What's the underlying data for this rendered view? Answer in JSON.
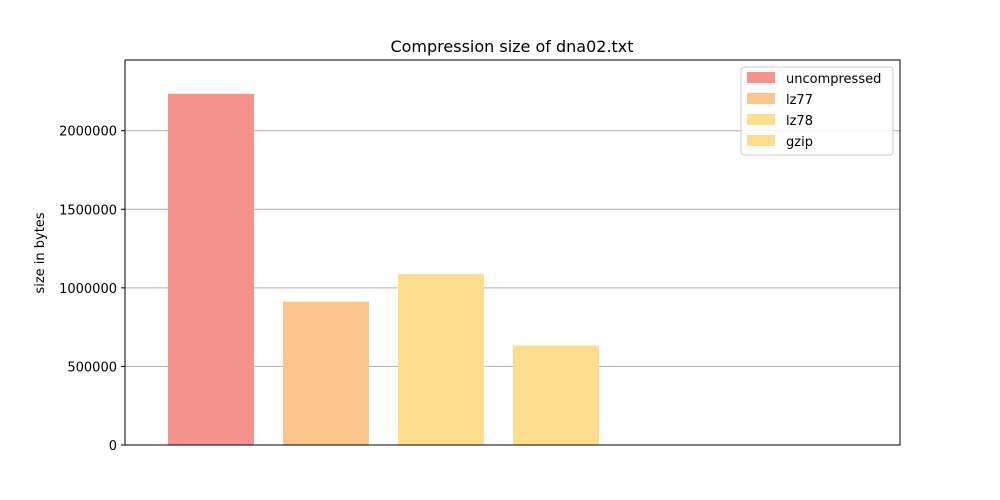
{
  "chart_data": {
    "type": "bar",
    "title": "Compression size of dna02.txt",
    "xlabel": "",
    "ylabel": "size in bytes",
    "ylim": [
      0,
      2450000
    ],
    "yticks": [
      0,
      500000,
      1000000,
      1500000,
      2000000
    ],
    "ytick_labels": [
      "0",
      "500000",
      "1000000",
      "1500000",
      "2000000"
    ],
    "grid": "y",
    "legend_position": "top-right",
    "series": [
      {
        "name": "uncompressed",
        "value": 2235000,
        "color": "#f4938e"
      },
      {
        "name": "lz77",
        "value": 912000,
        "color": "#fbc58d"
      },
      {
        "name": "lz78",
        "value": 1087000,
        "color": "#fedd8f"
      },
      {
        "name": "gzip",
        "value": 632000,
        "color": "#fedd8f"
      }
    ]
  }
}
